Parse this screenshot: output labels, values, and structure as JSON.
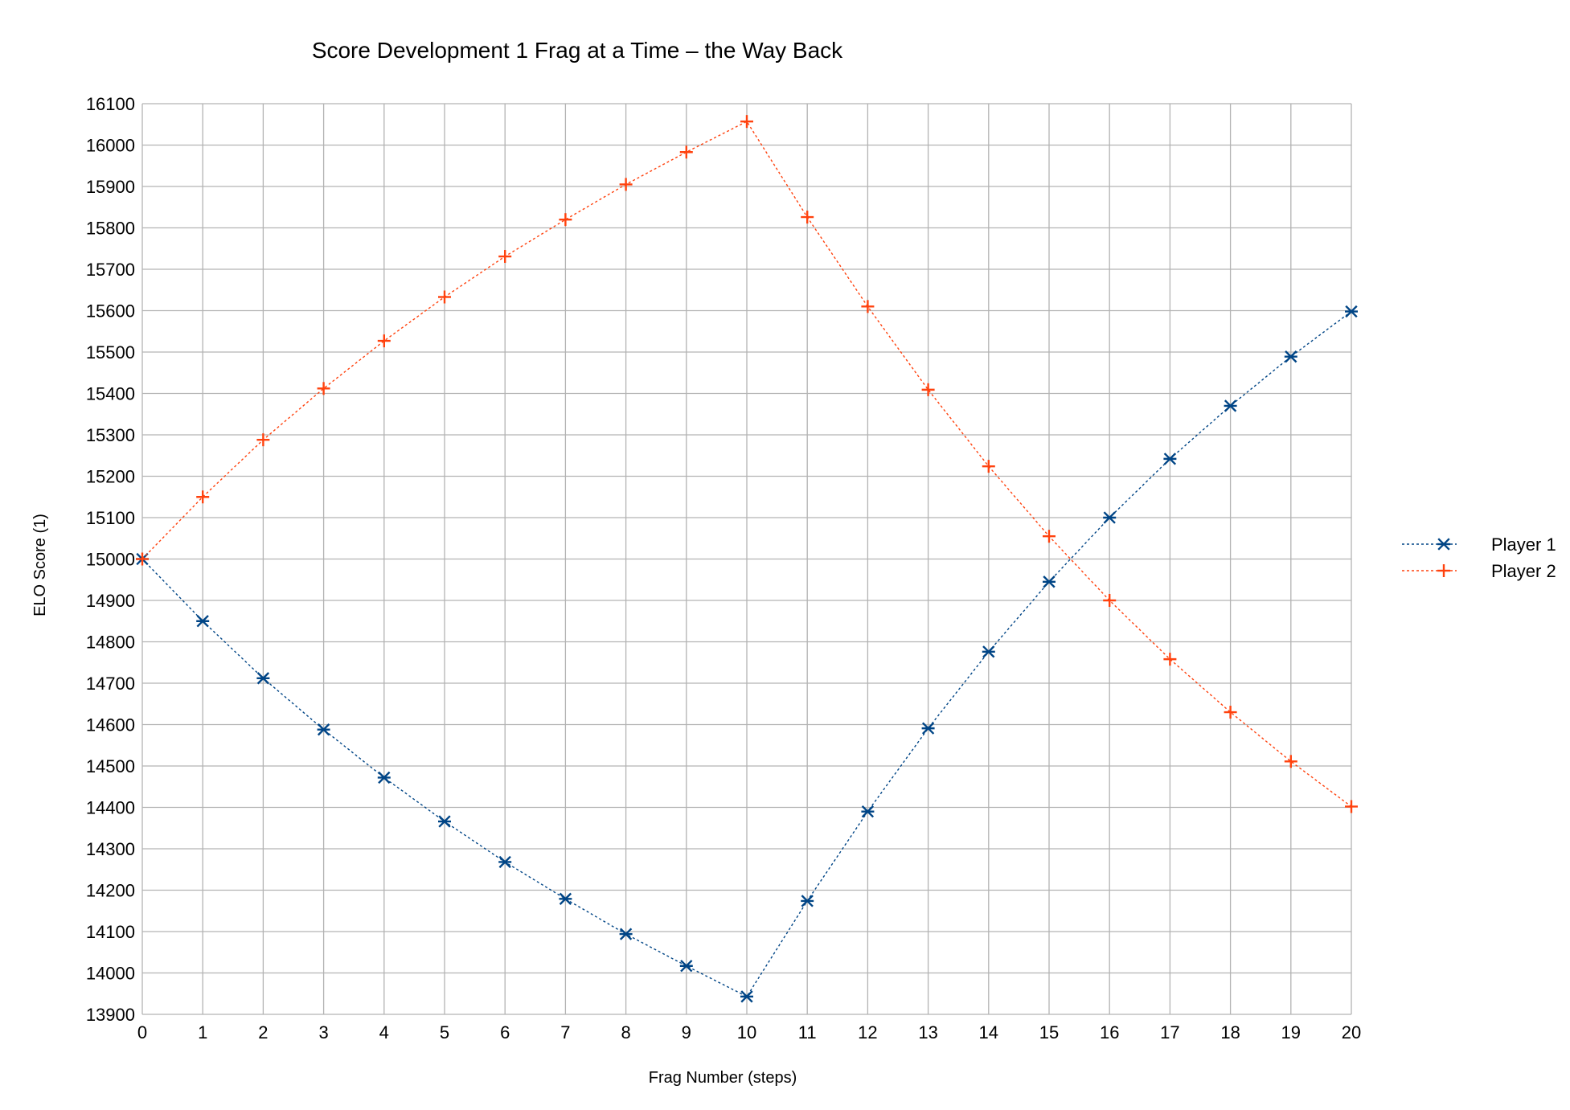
{
  "chart_data": {
    "type": "line",
    "title": "Score Development 1 Frag at a Time – the Way Back",
    "xlabel": "Frag Number (steps)",
    "ylabel": "ELO Score (1)",
    "xlim": [
      0,
      20
    ],
    "ylim": [
      13900,
      16100
    ],
    "xticks": [
      "0",
      "1",
      "2",
      "3",
      "4",
      "5",
      "6",
      "7",
      "8",
      "9",
      "10",
      "11",
      "12",
      "13",
      "14",
      "15",
      "16",
      "17",
      "18",
      "19",
      "20"
    ],
    "yticks": [
      "13900",
      "14000",
      "14100",
      "14200",
      "14300",
      "14400",
      "14500",
      "14600",
      "14700",
      "14800",
      "14900",
      "15000",
      "15100",
      "15200",
      "15300",
      "15400",
      "15500",
      "15600",
      "15700",
      "15800",
      "15900",
      "16000",
      "16100"
    ],
    "grid": true,
    "legend_position": "right",
    "x": [
      0,
      1,
      2,
      3,
      4,
      5,
      6,
      7,
      8,
      9,
      10,
      11,
      12,
      13,
      14,
      15,
      16,
      17,
      18,
      19,
      20
    ],
    "series": [
      {
        "name": "Player 1",
        "color": "#004586",
        "marker": "asterisk",
        "line_style": "dotted",
        "values": [
          15000,
          14850,
          14712,
          14588,
          14472,
          14366,
          14268,
          14179,
          14094,
          14017,
          13943,
          14174,
          14390,
          14591,
          14776,
          14945,
          15100,
          15242,
          15370,
          15489,
          15598
        ]
      },
      {
        "name": "Player 2",
        "color": "#ff420e",
        "marker": "plus",
        "line_style": "dotted",
        "values": [
          15000,
          15150,
          15288,
          15412,
          15527,
          15633,
          15731,
          15820,
          15905,
          15983,
          16057,
          15826,
          15610,
          15409,
          15224,
          15055,
          14900,
          14758,
          14630,
          14511,
          14402
        ]
      }
    ]
  }
}
